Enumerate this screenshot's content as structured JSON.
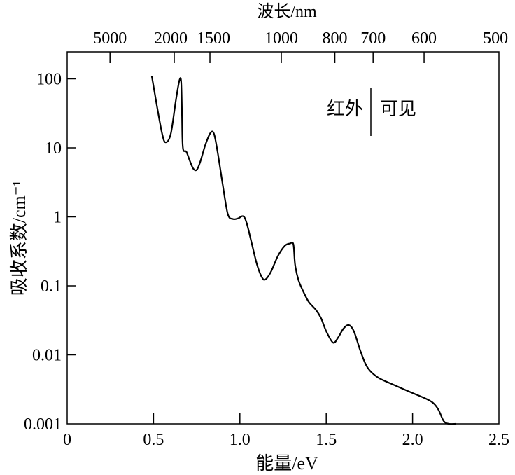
{
  "chart_data": {
    "type": "line",
    "title": "",
    "xlabel": "能量/eV",
    "ylabel": "吸收系数/cm⁻¹",
    "x2label": "波长/nm",
    "xlim": [
      0,
      2.5
    ],
    "ylim": [
      0.001,
      250
    ],
    "yscale": "log",
    "grid": false,
    "x_ticks": [
      0,
      0.5,
      1.0,
      1.5,
      2.0,
      2.5
    ],
    "x_tick_labels": [
      "0",
      "0.5",
      "1.0",
      "1.5",
      "2.0",
      "2.5"
    ],
    "y_ticks": [
      100,
      10,
      1,
      0.1,
      0.01,
      0.001
    ],
    "y_tick_labels": [
      "100",
      "10",
      "1",
      "0.1",
      "0.01",
      "0.001"
    ],
    "x2_ticks_nm": [
      5000,
      2000,
      1500,
      1000,
      800,
      700,
      600,
      500
    ],
    "x2_tick_labels": [
      "5000",
      "2000",
      "1500",
      "1000",
      "800",
      "700",
      "600",
      "500"
    ],
    "annotation": {
      "left": "红外",
      "right": "可见",
      "boundary_ev": 1.77
    },
    "series": [
      {
        "name": "absorption",
        "x": [
          0.49,
          0.52,
          0.55,
          0.57,
          0.6,
          0.63,
          0.65,
          0.66,
          0.665,
          0.67,
          0.69,
          0.71,
          0.73,
          0.75,
          0.77,
          0.8,
          0.83,
          0.85,
          0.87,
          0.9,
          0.93,
          0.96,
          0.99,
          1.02,
          1.04,
          1.07,
          1.1,
          1.13,
          1.15,
          1.18,
          1.22,
          1.26,
          1.29,
          1.31,
          1.32,
          1.34,
          1.37,
          1.4,
          1.44,
          1.47,
          1.5,
          1.54,
          1.57,
          1.6,
          1.63,
          1.66,
          1.7,
          1.74,
          1.8,
          1.9,
          2.0,
          2.08,
          2.12,
          2.15,
          2.18,
          2.21,
          2.25
        ],
        "y": [
          110,
          40,
          16,
          12,
          16,
          50,
          95,
          90,
          30,
          10,
          8.8,
          6.5,
          5.0,
          4.8,
          6.2,
          11,
          16.5,
          16,
          9,
          3,
          1.1,
          0.93,
          0.95,
          1.02,
          0.8,
          0.4,
          0.2,
          0.13,
          0.125,
          0.16,
          0.27,
          0.38,
          0.41,
          0.4,
          0.2,
          0.12,
          0.08,
          0.058,
          0.045,
          0.034,
          0.022,
          0.015,
          0.018,
          0.024,
          0.027,
          0.022,
          0.011,
          0.0065,
          0.0047,
          0.0036,
          0.0028,
          0.0023,
          0.002,
          0.0016,
          0.0011,
          0.001,
          0.001
        ]
      }
    ]
  }
}
